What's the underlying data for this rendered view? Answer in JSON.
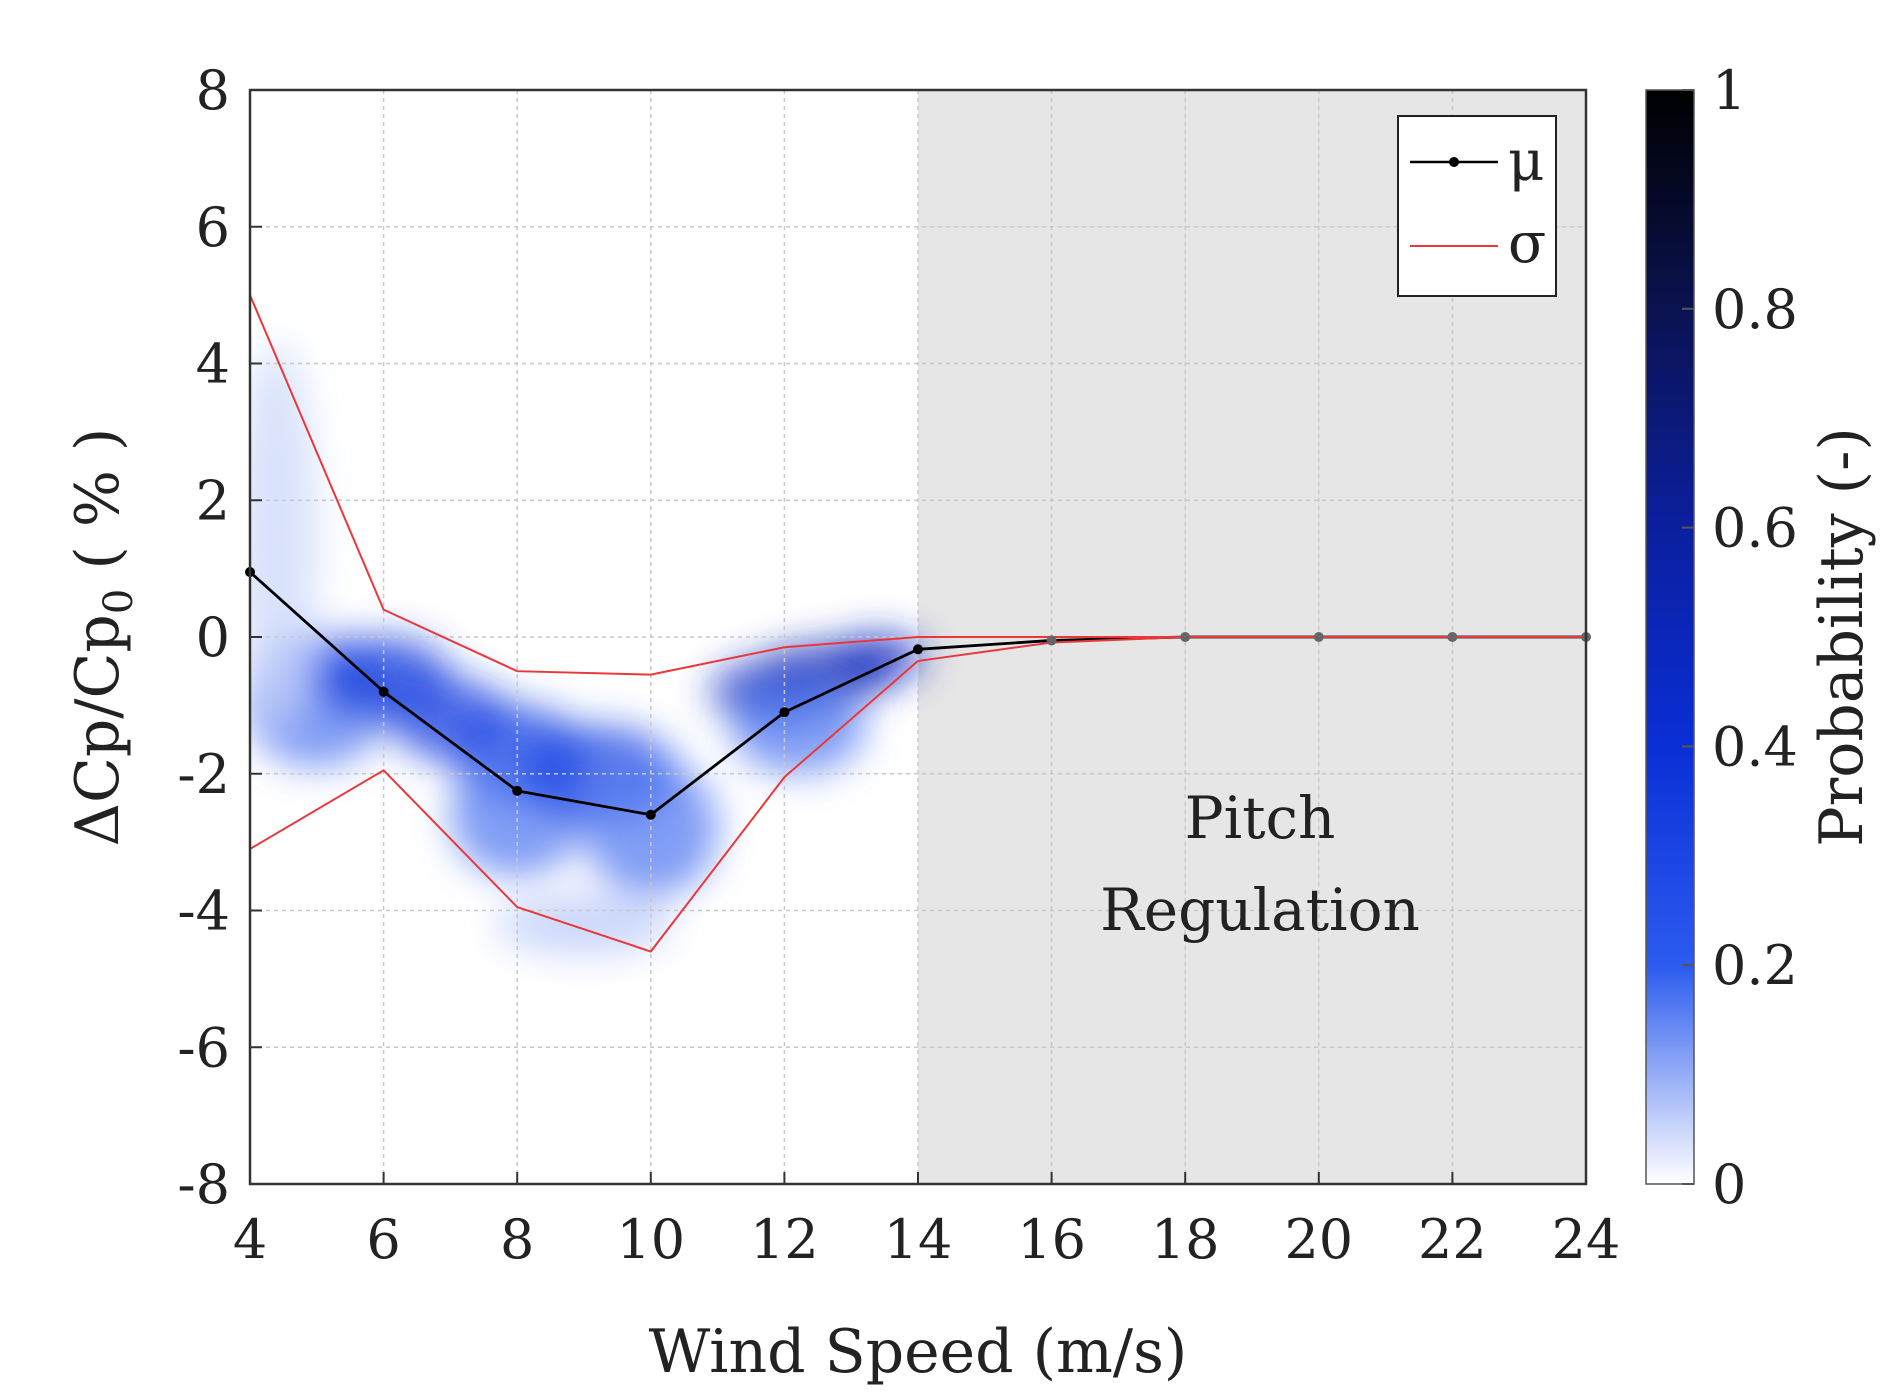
{
  "chart_data": {
    "type": "line",
    "title": "",
    "xlabel": "Wind Speed (m/s)",
    "ylabel_main": "ΔCp/Cp",
    "ylabel_sub": "0",
    "ylabel_tail": " ( % )",
    "xlim": [
      4,
      24
    ],
    "ylim": [
      -8,
      8
    ],
    "xticks": [
      4,
      6,
      8,
      10,
      12,
      14,
      16,
      18,
      20,
      22,
      24
    ],
    "yticks": [
      -8,
      -6,
      -4,
      -2,
      0,
      2,
      4,
      6,
      8
    ],
    "grid": true,
    "legend": {
      "placement": "top-right",
      "entries": [
        "μ",
        "σ"
      ]
    },
    "shaded_region": {
      "x_from": 14,
      "x_to": 24,
      "label_line1": "Pitch",
      "label_line2": "Regulation"
    },
    "series": [
      {
        "name": "μ",
        "color": "#000000",
        "x": [
          4,
          6,
          8,
          10,
          12,
          14,
          16,
          18,
          20,
          22,
          24
        ],
        "values": [
          0.95,
          -0.8,
          -2.25,
          -2.6,
          -1.1,
          -0.18,
          -0.05,
          0,
          0,
          0,
          0
        ]
      },
      {
        "name": "σ upper",
        "color": "#e8383a",
        "x": [
          4,
          6,
          8,
          10,
          12,
          14,
          16,
          18,
          20,
          22,
          24
        ],
        "values": [
          5.0,
          0.4,
          -0.5,
          -0.55,
          -0.15,
          0.0,
          0.0,
          0,
          0,
          0,
          0
        ]
      },
      {
        "name": "σ lower",
        "color": "#e8383a",
        "x": [
          4,
          6,
          8,
          10,
          12,
          14,
          16,
          18,
          20,
          22,
          24
        ],
        "values": [
          -3.1,
          -1.95,
          -3.95,
          -4.6,
          -2.05,
          -0.35,
          -0.08,
          0,
          0,
          0,
          0
        ]
      }
    ],
    "colorbar": {
      "label": "Probability (-)",
      "range": [
        0,
        1
      ],
      "ticks": [
        0,
        0.2,
        0.4,
        0.6,
        0.8,
        1
      ],
      "tick_labels": [
        "0",
        "0.2",
        "0.4",
        "0.6",
        "0.8",
        "1"
      ],
      "colors": [
        "#ffffff",
        "#2b5bef",
        "#0a2fd6",
        "#0b1f9e",
        "#0a1250",
        "#000000"
      ]
    },
    "density_blobs": [
      {
        "x": 5.0,
        "y": -0.9,
        "rx": 1.1,
        "ry": 1.0,
        "p": 0.1
      },
      {
        "x": 6.0,
        "y": -0.6,
        "rx": 1.0,
        "ry": 0.6,
        "p": 0.22
      },
      {
        "x": 7.0,
        "y": -1.2,
        "rx": 0.9,
        "ry": 0.6,
        "p": 0.2
      },
      {
        "x": 8.0,
        "y": -1.7,
        "rx": 1.0,
        "ry": 0.7,
        "p": 0.18
      },
      {
        "x": 8.0,
        "y": -2.6,
        "rx": 1.0,
        "ry": 0.9,
        "p": 0.1
      },
      {
        "x": 9.2,
        "y": -2.0,
        "rx": 1.2,
        "ry": 0.7,
        "p": 0.18
      },
      {
        "x": 10.0,
        "y": -2.8,
        "rx": 1.0,
        "ry": 1.0,
        "p": 0.1
      },
      {
        "x": 9.0,
        "y": -4.2,
        "rx": 1.3,
        "ry": 0.45,
        "p": 0.04
      },
      {
        "x": 11.8,
        "y": -0.8,
        "rx": 0.9,
        "ry": 0.45,
        "p": 0.3
      },
      {
        "x": 12.6,
        "y": -0.55,
        "rx": 1.0,
        "ry": 0.45,
        "p": 0.32
      },
      {
        "x": 13.4,
        "y": -0.3,
        "rx": 0.7,
        "ry": 0.35,
        "p": 0.3
      },
      {
        "x": 12.2,
        "y": -1.3,
        "rx": 1.0,
        "ry": 0.7,
        "p": 0.1
      },
      {
        "x": 4.4,
        "y": 1.5,
        "rx": 0.6,
        "ry": 2.8,
        "p": 0.03
      }
    ]
  }
}
